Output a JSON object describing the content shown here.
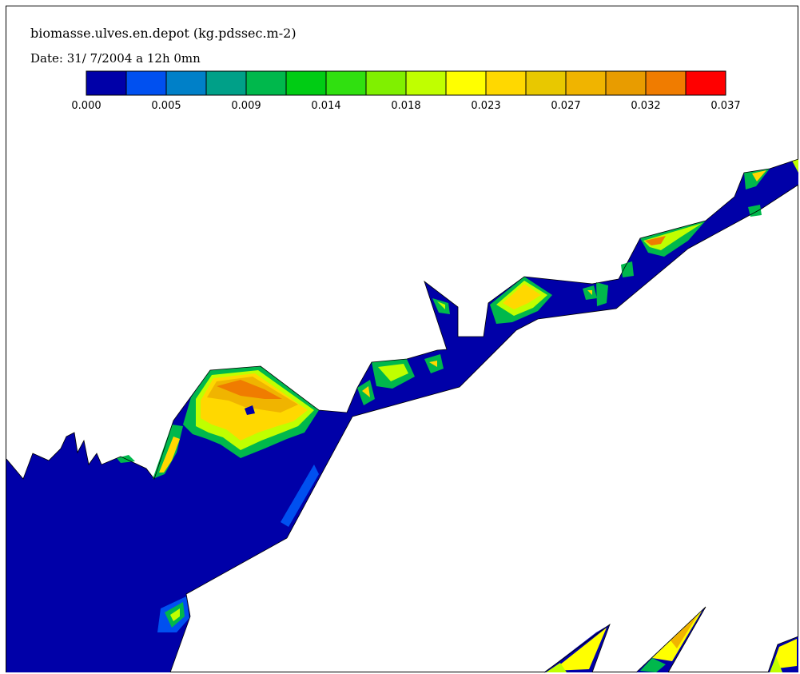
{
  "title": "biomasse.ulves.en.depot (kg.pdssec.m-2)",
  "date_label": "Date: 31/ 7/2004 a 12h 0mn",
  "colorbar": {
    "colors": [
      "#0000a8",
      "#0050f0",
      "#0080c8",
      "#00a088",
      "#00b84c",
      "#00cc14",
      "#30e010",
      "#80f000",
      "#c0ff00",
      "#ffff00",
      "#ffd800",
      "#e8c800",
      "#f0b400",
      "#e89c00",
      "#f07c00",
      "#ff0000"
    ],
    "tick_labels": [
      "0.000",
      "0.005",
      "0.009",
      "0.014",
      "0.018",
      "0.023",
      "0.027",
      "0.032",
      "0.037"
    ]
  },
  "map_colors": {
    "water_low": "#0000a8",
    "background": "#ffffff"
  }
}
